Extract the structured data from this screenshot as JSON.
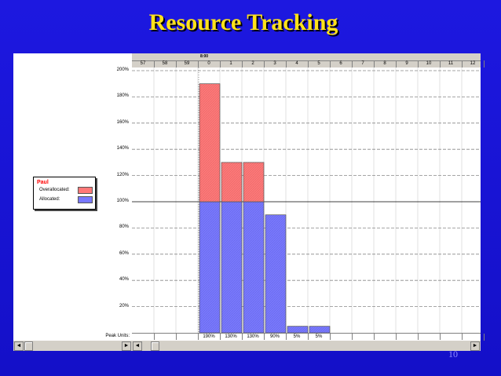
{
  "slide": {
    "title": "Resource Tracking",
    "page_number": "10"
  },
  "colors": {
    "background": "#1a14d8",
    "title": "#ffe21a",
    "overallocated": "#ff7878",
    "allocated": "#7878ff"
  },
  "legend": {
    "resource_name": "Paul",
    "items": [
      {
        "label": "Overallocated:",
        "color": "#ff7878"
      },
      {
        "label": "Allocated:",
        "color": "#7878ff"
      }
    ]
  },
  "timescale": {
    "date_label": "8:00",
    "hours": [
      "57",
      "58",
      "59",
      "0",
      "1",
      "2",
      "3",
      "4",
      "5",
      "6",
      "7",
      "8",
      "9",
      "10",
      "11",
      "12"
    ]
  },
  "peak_units_label": "Peak Units:",
  "peak_units": [
    "",
    "",
    "",
    "190%",
    "130%",
    "130%",
    "90%",
    "5%",
    "5%",
    "",
    "",
    "",
    "",
    "",
    "",
    ""
  ],
  "scrollbars": {
    "left_arrow": "◄",
    "right_arrow": "►"
  },
  "chart_data": {
    "type": "bar",
    "stacked": true,
    "categories": [
      "57",
      "58",
      "59",
      "0",
      "1",
      "2",
      "3",
      "4",
      "5",
      "6",
      "7",
      "8",
      "9",
      "10",
      "11",
      "12"
    ],
    "series": [
      {
        "name": "Allocated:",
        "color": "#7878ff",
        "values": [
          0,
          0,
          0,
          100,
          100,
          100,
          90,
          5,
          5,
          0,
          0,
          0,
          0,
          0,
          0,
          0
        ]
      },
      {
        "name": "Overallocated:",
        "color": "#ff7878",
        "values": [
          0,
          0,
          0,
          90,
          30,
          30,
          0,
          0,
          0,
          0,
          0,
          0,
          0,
          0,
          0,
          0
        ]
      }
    ],
    "peak_units": [
      0,
      0,
      0,
      190,
      130,
      130,
      90,
      5,
      5,
      0,
      0,
      0,
      0,
      0,
      0,
      0
    ],
    "y_ticks": [
      "20%",
      "40%",
      "60%",
      "80%",
      "100%",
      "120%",
      "140%",
      "160%",
      "180%",
      "200%"
    ],
    "ylim": [
      0,
      200
    ],
    "grid": true,
    "legend_position": "left"
  }
}
